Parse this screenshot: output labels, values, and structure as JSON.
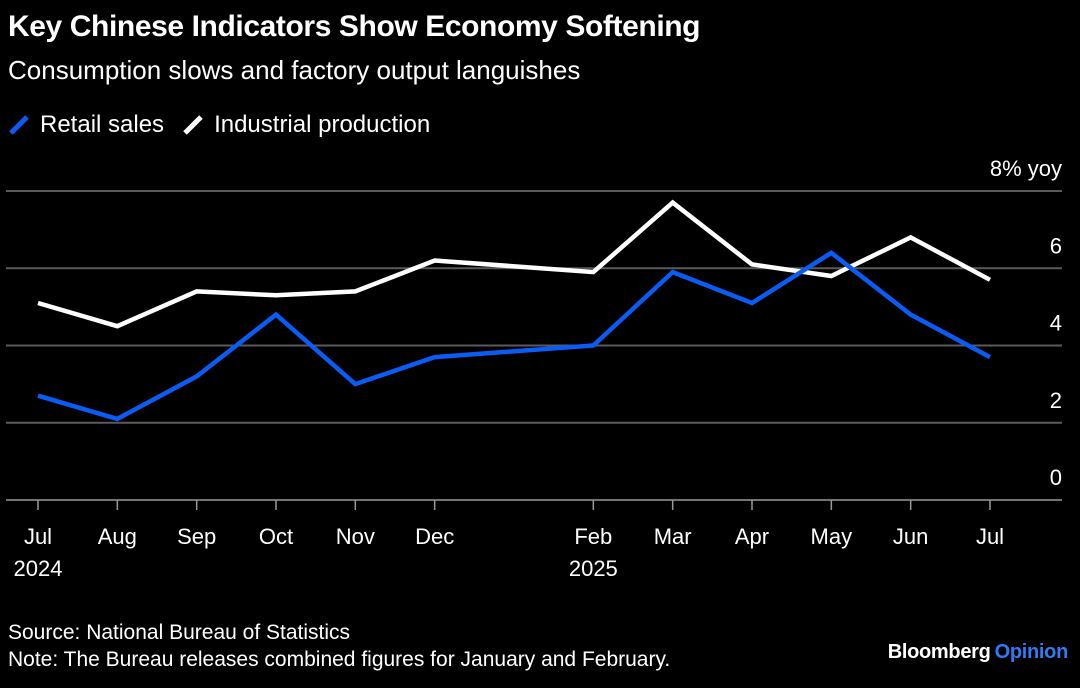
{
  "title": "Key Chinese Indicators Show Economy Softening",
  "subtitle": "Consumption slows and factory output languishes",
  "source": "Source: National Bureau of Statistics",
  "note": "Note: The Bureau releases combined figures for January and February.",
  "brand": {
    "name": "Bloomberg",
    "suffix": "Opinion",
    "accent_color": "#2f7bf5"
  },
  "chart_data": {
    "type": "line",
    "x": [
      "2024-07",
      "2024-08",
      "2024-09",
      "2024-10",
      "2024-11",
      "2024-12",
      "2025-02",
      "2025-03",
      "2025-04",
      "2025-05",
      "2025-06",
      "2025-07"
    ],
    "x_tick_labels": [
      "Jul",
      "Aug",
      "Sep",
      "Oct",
      "Nov",
      "Dec",
      "Feb",
      "Mar",
      "Apr",
      "May",
      "Jun",
      "Jul"
    ],
    "year_labels": [
      {
        "x": "2024-07",
        "label": "2024"
      },
      {
        "x": "2025-02",
        "label": "2025"
      }
    ],
    "y_unit_label": "8% yoy",
    "y_ticks": [
      0,
      2,
      4,
      6,
      8
    ],
    "y_tick_labels": [
      "0",
      "2",
      "4",
      "6",
      "8% yoy"
    ],
    "ylim": [
      0,
      8
    ],
    "grid": true,
    "legend_position": "top-left",
    "series": [
      {
        "name": "Retail sales",
        "color": "#0a5cf5",
        "values": [
          2.7,
          2.1,
          3.2,
          4.8,
          3.0,
          3.7,
          4.0,
          5.9,
          5.1,
          6.4,
          4.8,
          3.7
        ]
      },
      {
        "name": "Industrial production",
        "color": "#ffffff",
        "values": [
          5.1,
          4.5,
          5.4,
          5.3,
          5.4,
          6.2,
          5.9,
          7.7,
          6.1,
          5.8,
          6.8,
          5.7
        ]
      }
    ]
  }
}
